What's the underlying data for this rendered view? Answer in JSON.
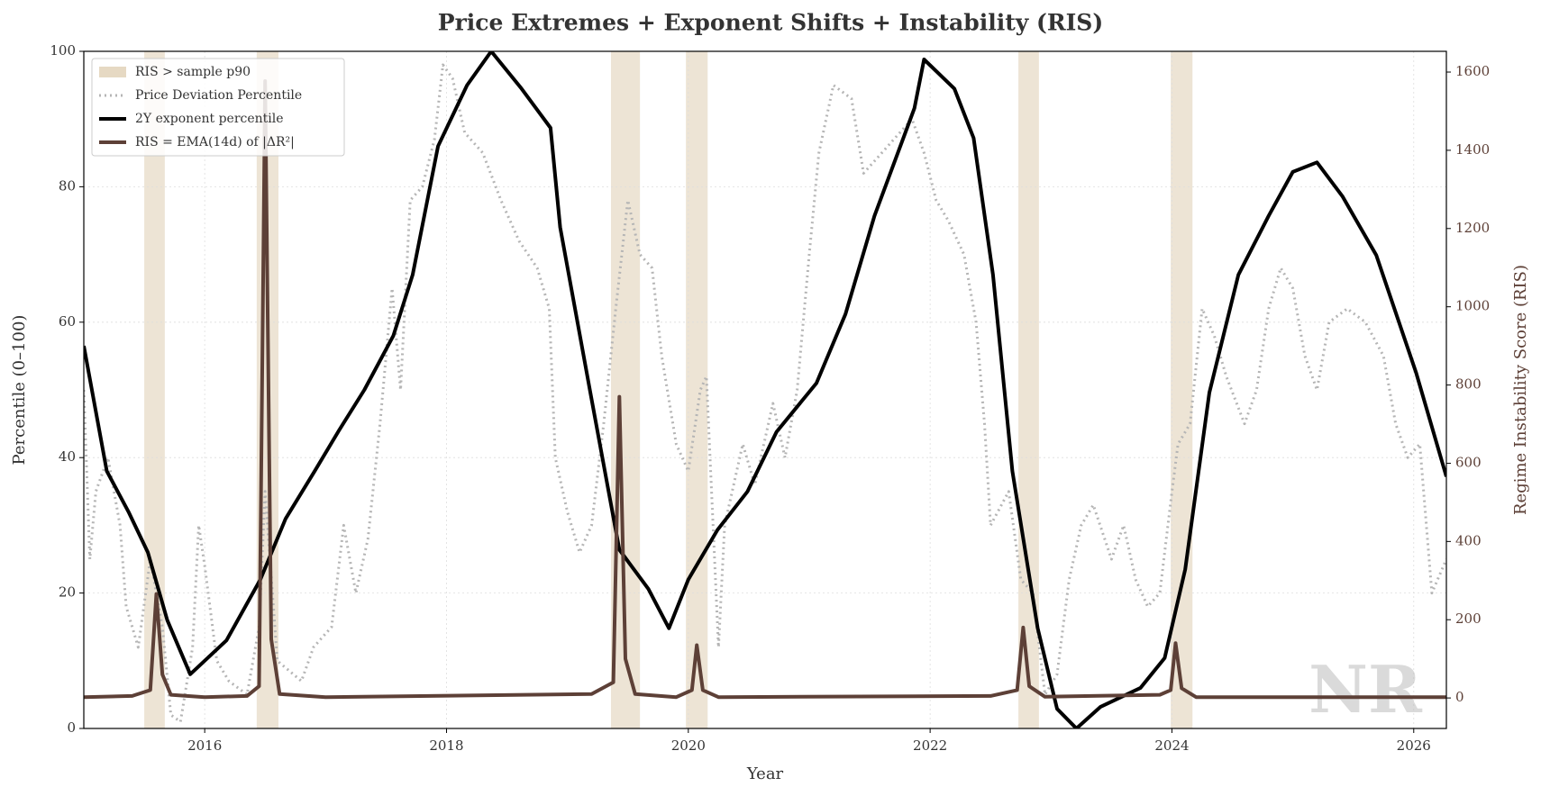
{
  "chart_data": {
    "type": "line",
    "title": "Price Extremes + Exponent Shifts + Instability (RIS)",
    "xlabel": "Year",
    "ylabel": "Percentile (0–100)",
    "y2label": "Regime Instability Score (RIS)",
    "watermark": "NR",
    "xlim": [
      2015.0,
      2026.27
    ],
    "xticks": [
      2016,
      2018,
      2020,
      2022,
      2024,
      2026
    ],
    "ylim": [
      0,
      100
    ],
    "yticks": [
      0,
      20,
      40,
      60,
      80,
      100
    ],
    "y2lim": [
      -78,
      1653
    ],
    "y2ticks": [
      0,
      200,
      400,
      600,
      800,
      1000,
      1200,
      1400,
      1600
    ],
    "grid": true,
    "legend": "upper left",
    "span_name": "RIS > sample p90",
    "span_color": "#e6d9c3",
    "spans": [
      [
        2015.5,
        2015.67
      ],
      [
        2016.43,
        2016.61
      ],
      [
        2019.36,
        2019.6
      ],
      [
        2019.98,
        2020.16
      ],
      [
        2022.73,
        2022.9
      ],
      [
        2023.99,
        2024.17
      ]
    ],
    "series": [
      {
        "name": "Price Deviation Percentile",
        "color": "#b5b5b5",
        "style": "dotted",
        "x": [
          2015.0,
          2015.05,
          2015.1,
          2015.2,
          2015.3,
          2015.35,
          2015.45,
          2015.55,
          2015.65,
          2015.72,
          2015.8,
          2015.9,
          2015.95,
          2016.0,
          2016.1,
          2016.2,
          2016.35,
          2016.45,
          2016.5,
          2016.6,
          2016.8,
          2016.9,
          2017.05,
          2017.15,
          2017.25,
          2017.35,
          2017.45,
          2017.55,
          2017.62,
          2017.7,
          2017.8,
          2017.9,
          2017.97,
          2018.05,
          2018.15,
          2018.3,
          2018.45,
          2018.6,
          2018.75,
          2018.85,
          2018.9,
          2019.0,
          2019.1,
          2019.2,
          2019.3,
          2019.4,
          2019.5,
          2019.6,
          2019.7,
          2019.78,
          2019.9,
          2020.0,
          2020.1,
          2020.15,
          2020.25,
          2020.3,
          2020.45,
          2020.55,
          2020.7,
          2020.8,
          2020.9,
          2021.0,
          2021.08,
          2021.2,
          2021.35,
          2021.45,
          2021.6,
          2021.75,
          2021.85,
          2021.95,
          2022.05,
          2022.15,
          2022.28,
          2022.38,
          2022.45,
          2022.5,
          2022.65,
          2022.75,
          2022.85,
          2022.95,
          2023.05,
          2023.15,
          2023.25,
          2023.35,
          2023.5,
          2023.6,
          2023.7,
          2023.8,
          2023.9,
          2024.0,
          2024.05,
          2024.15,
          2024.25,
          2024.35,
          2024.45,
          2024.6,
          2024.7,
          2024.8,
          2024.9,
          2025.0,
          2025.1,
          2025.2,
          2025.3,
          2025.45,
          2025.6,
          2025.75,
          2025.85,
          2025.95,
          2026.05,
          2026.15,
          2026.27
        ],
        "values": [
          50,
          25,
          35,
          40,
          30,
          18,
          12,
          25,
          15,
          2,
          1,
          12,
          30,
          24,
          10,
          7,
          5,
          15,
          35,
          10,
          7,
          12,
          15,
          30,
          20,
          28,
          45,
          65,
          50,
          78,
          80,
          87,
          98,
          96,
          88,
          85,
          78,
          72,
          68,
          62,
          40,
          32,
          26,
          30,
          45,
          62,
          78,
          70,
          68,
          55,
          42,
          38,
          50,
          52,
          12,
          30,
          42,
          36,
          48,
          40,
          50,
          70,
          85,
          95,
          93,
          82,
          85,
          88,
          90,
          85,
          78,
          75,
          70,
          60,
          45,
          30,
          35,
          22,
          20,
          5,
          8,
          22,
          30,
          33,
          25,
          30,
          22,
          18,
          20,
          35,
          42,
          45,
          62,
          58,
          52,
          45,
          50,
          62,
          68,
          65,
          55,
          50,
          60,
          62,
          60,
          55,
          45,
          40,
          42,
          20,
          25
        ]
      },
      {
        "name": "2Y exponent percentile",
        "color": "#000000",
        "style": "solid",
        "x": [
          2015.0,
          2015.19,
          2015.37,
          2015.53,
          2015.69,
          2015.88,
          2016.18,
          2016.46,
          2016.67,
          2016.91,
          2017.11,
          2017.32,
          2017.56,
          2017.72,
          2017.93,
          2018.17,
          2018.37,
          2018.62,
          2018.86,
          2018.94,
          2019.19,
          2019.43,
          2019.67,
          2019.84,
          2020.0,
          2020.24,
          2020.49,
          2020.73,
          2021.06,
          2021.3,
          2021.54,
          2021.87,
          2021.95,
          2022.2,
          2022.36,
          2022.52,
          2022.68,
          2022.89,
          2023.05,
          2023.21,
          2023.41,
          2023.74,
          2023.94,
          2024.11,
          2024.31,
          2024.55,
          2024.8,
          2025.0,
          2025.2,
          2025.41,
          2025.69,
          2026.02,
          2026.27
        ],
        "values": [
          56.5,
          38,
          32,
          26,
          16,
          8,
          13,
          22,
          31,
          38,
          44,
          50,
          58,
          67,
          86,
          95,
          100,
          94.5,
          88.7,
          74,
          49.6,
          26.4,
          20.6,
          14.8,
          22,
          29.3,
          35,
          43.8,
          51,
          61.2,
          75.7,
          91.6,
          98.8,
          94.5,
          87.2,
          67,
          38,
          14.8,
          2.9,
          0,
          3.2,
          6,
          10.4,
          23.5,
          49.6,
          67,
          75.7,
          82.2,
          83.6,
          78.6,
          69.9,
          52.5,
          37.2
        ]
      },
      {
        "name": "RIS = EMA(14d) of |ΔR²|",
        "color": "#5d4037",
        "style": "solid",
        "axis": "y2",
        "x": [
          2015.0,
          2015.4,
          2015.55,
          2015.6,
          2015.65,
          2015.72,
          2016.0,
          2016.35,
          2016.45,
          2016.5,
          2016.55,
          2016.62,
          2017.0,
          2019.2,
          2019.38,
          2019.43,
          2019.48,
          2019.56,
          2019.9,
          2020.03,
          2020.07,
          2020.12,
          2020.25,
          2022.5,
          2022.72,
          2022.77,
          2022.82,
          2022.95,
          2023.9,
          2023.99,
          2024.03,
          2024.08,
          2024.2,
          2026.27
        ],
        "values": [
          2,
          5,
          20,
          266,
          60,
          8,
          2,
          5,
          30,
          1577,
          150,
          10,
          2,
          10,
          40,
          770,
          100,
          10,
          2,
          20,
          135,
          20,
          2,
          5,
          20,
          180,
          30,
          3,
          8,
          20,
          140,
          25,
          2,
          2
        ]
      }
    ]
  }
}
